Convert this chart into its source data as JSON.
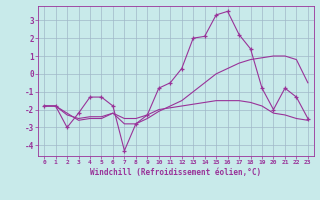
{
  "xlabel": "Windchill (Refroidissement éolien,°C)",
  "background_color": "#c8eaea",
  "grid_color": "#a0b8c8",
  "line_color": "#993399",
  "ylim": [
    -4.6,
    3.8
  ],
  "xlim": [
    -0.5,
    23.5
  ],
  "yticks": [
    -4,
    -3,
    -2,
    -1,
    0,
    1,
    2,
    3
  ],
  "xticks": [
    0,
    1,
    2,
    3,
    4,
    5,
    6,
    7,
    8,
    9,
    10,
    11,
    12,
    13,
    14,
    15,
    16,
    17,
    18,
    19,
    20,
    21,
    22,
    23
  ],
  "line1_x": [
    0,
    1,
    2,
    3,
    4,
    5,
    6,
    7,
    8,
    9,
    10,
    11,
    12,
    13,
    14,
    15,
    16,
    17,
    18,
    19,
    20,
    21,
    22,
    23
  ],
  "line1_y": [
    -1.8,
    -1.8,
    -3.0,
    -2.2,
    -1.3,
    -1.3,
    -1.8,
    -4.3,
    -2.8,
    -2.3,
    -0.8,
    -0.5,
    0.3,
    2.0,
    2.1,
    3.3,
    3.5,
    2.2,
    1.4,
    -0.8,
    -2.0,
    -0.8,
    -1.3,
    -2.5
  ],
  "line2_x": [
    0,
    1,
    2,
    3,
    4,
    5,
    6,
    7,
    8,
    9,
    10,
    11,
    12,
    13,
    14,
    15,
    16,
    17,
    18,
    19,
    20,
    21,
    22,
    23
  ],
  "line2_y": [
    -1.8,
    -1.8,
    -2.3,
    -2.5,
    -2.4,
    -2.4,
    -2.2,
    -2.5,
    -2.5,
    -2.3,
    -2.0,
    -1.9,
    -1.8,
    -1.7,
    -1.6,
    -1.5,
    -1.5,
    -1.5,
    -1.6,
    -1.8,
    -2.2,
    -2.3,
    -2.5,
    -2.6
  ],
  "line3_x": [
    0,
    1,
    2,
    3,
    4,
    5,
    6,
    7,
    8,
    9,
    10,
    11,
    12,
    13,
    14,
    15,
    16,
    17,
    18,
    19,
    20,
    21,
    22,
    23
  ],
  "line3_y": [
    -1.8,
    -1.8,
    -2.2,
    -2.6,
    -2.5,
    -2.5,
    -2.2,
    -2.8,
    -2.8,
    -2.5,
    -2.1,
    -1.8,
    -1.5,
    -1.0,
    -0.5,
    0.0,
    0.3,
    0.6,
    0.8,
    0.9,
    1.0,
    1.0,
    0.8,
    -0.5
  ]
}
